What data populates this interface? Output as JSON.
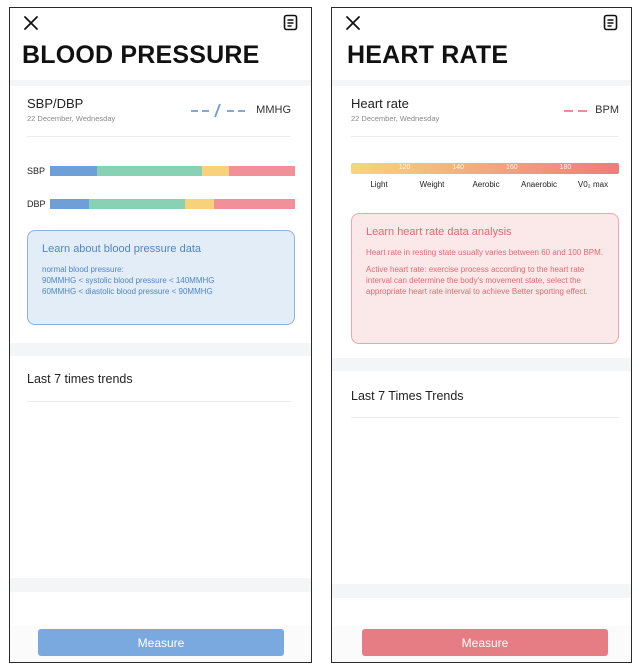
{
  "bp": {
    "title": "BLOOD PRESSURE",
    "card": {
      "title": "SBP/DBP",
      "date": "22 December, Wednesday",
      "value": "--/--",
      "unit": "MMHG"
    },
    "bars": [
      {
        "label": "SBP",
        "segments": [
          {
            "color": "#6e9fd6",
            "fraction": 0.19
          },
          {
            "color": "#88d1b5",
            "fraction": 0.43
          },
          {
            "color": "#f7d27a",
            "fraction": 0.11
          },
          {
            "color": "#f2909a",
            "fraction": 0.27
          }
        ]
      },
      {
        "label": "DBP",
        "segments": [
          {
            "color": "#6e9fd6",
            "fraction": 0.16
          },
          {
            "color": "#88d1b5",
            "fraction": 0.39
          },
          {
            "color": "#f7d27a",
            "fraction": 0.12
          },
          {
            "color": "#f2909a",
            "fraction": 0.33
          }
        ]
      }
    ],
    "info": {
      "title": "Learn about blood pressure data",
      "lines": [
        "normal blood pressure:",
        "90MMHG < systolic blood pressure < 140MMHG",
        "60MMHG < diastolic blood pressure < 90MMHG"
      ]
    },
    "trends_title": "Last 7 times trends",
    "measure_label": "Measure"
  },
  "hr": {
    "title": "HEART RATE",
    "card": {
      "title": "Heart rate",
      "date": "22 December, Wednesday",
      "value": "--",
      "unit": "BPM"
    },
    "scale": {
      "ticks": [
        "120",
        "140",
        "160",
        "180"
      ],
      "zones": [
        "Light",
        "Weight",
        "Aerobic",
        "Anaerobic",
        "V0₂ max"
      ]
    },
    "info": {
      "title": "Learn heart rate data analysis",
      "paragraphs": [
        "Heart rate in resting state usually varies between 60 and 100 BPM.",
        "Active heart rate: exercise process according to the heart rate interval can determine the body's movement state, select the appropriate heart rate interval to achieve Better sporting effect."
      ]
    },
    "trends_title": "Last 7 Times Trends",
    "measure_label": "Measure"
  },
  "colors": {
    "bp_accent": "#6e9fd6",
    "bp_button": "#7aa9e0",
    "hr_accent": "#ee7d84",
    "hr_button": "#e67c84",
    "scale_start": "#f7d67a",
    "scale_end": "#f07b7d"
  },
  "icons": {
    "close": "close-icon",
    "report": "report-icon"
  }
}
